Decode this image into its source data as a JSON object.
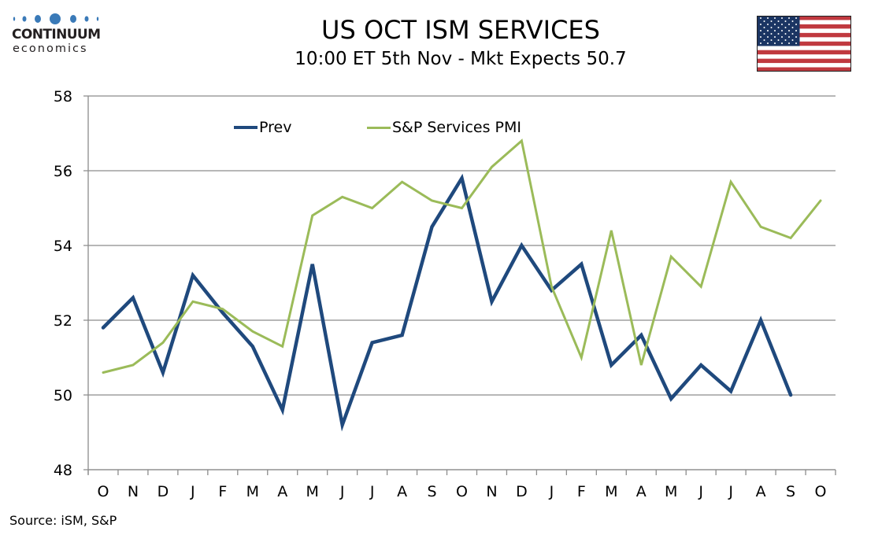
{
  "brand": {
    "name": "CONTINUUM",
    "sub": "economics",
    "color": "#3a7ab8"
  },
  "header": {
    "title": "US OCT ISM SERVICES",
    "subtitle": "10:00 ET 5th Nov - Mkt Expects 50.7",
    "flag_icon": "us-flag-icon"
  },
  "footer": {
    "source": "Source: iSM, S&P"
  },
  "chart_data": {
    "type": "line",
    "title": "US OCT ISM SERVICES",
    "subtitle": "10:00 ET 5th Nov - Mkt Expects 50.7",
    "xlabel": "",
    "ylabel": "",
    "ylim": [
      48,
      58
    ],
    "yticks": [
      48,
      50,
      52,
      54,
      56,
      58
    ],
    "ytick_labels": [
      "48",
      "50",
      "52",
      "54",
      "56",
      "58"
    ],
    "grid": true,
    "legend_position": "top-center",
    "categories": [
      "O",
      "N",
      "D",
      "J",
      "F",
      "M",
      "A",
      "M",
      "J",
      "J",
      "A",
      "S",
      "O",
      "N",
      "D",
      "J",
      "F",
      "M",
      "A",
      "M",
      "J",
      "J",
      "A",
      "S",
      "O"
    ],
    "series": [
      {
        "name": "Prev",
        "color": "#1f497d",
        "values": [
          51.8,
          52.6,
          50.6,
          53.2,
          52.2,
          51.3,
          49.6,
          53.5,
          49.2,
          51.4,
          51.6,
          54.5,
          55.8,
          52.5,
          54.0,
          52.8,
          53.5,
          50.8,
          51.6,
          49.9,
          50.8,
          50.1,
          52.0,
          50.0,
          null
        ]
      },
      {
        "name": "S&P Services PMI",
        "color": "#9bbb59",
        "values": [
          50.6,
          50.8,
          51.4,
          52.5,
          52.3,
          51.7,
          51.3,
          54.8,
          55.3,
          55.0,
          55.7,
          55.2,
          55.0,
          56.1,
          56.8,
          52.9,
          51.0,
          54.4,
          50.8,
          53.7,
          52.9,
          55.7,
          54.5,
          54.2,
          55.2
        ]
      }
    ]
  }
}
